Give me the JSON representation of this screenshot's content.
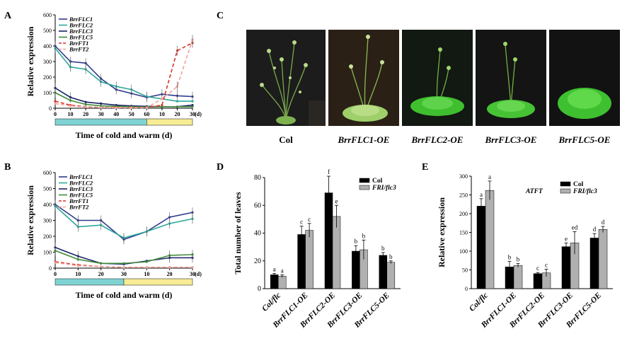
{
  "panel_letters": {
    "a": "A",
    "b": "B",
    "c": "C",
    "d": "D",
    "e": "E"
  },
  "line_panel_common": {
    "xlabel": "Time of cold and warm (d)",
    "ylabel": "Relative expression",
    "y_ticks": [
      "0",
      "100",
      "200",
      "300",
      "400",
      "500",
      "600"
    ],
    "unit_label": "(d)",
    "cold_bar_color": "#7fd3d3",
    "warm_bar_color": "#f8ec94"
  },
  "chart_data": [
    {
      "panel": "A",
      "type": "line",
      "xlabel": "Time of cold and warm (d)",
      "ylabel": "Relative expression",
      "ylim": [
        0,
        600
      ],
      "x_tick_labels": [
        "0",
        "10",
        "20",
        "30",
        "40",
        "50",
        "60",
        "10",
        "20",
        "30"
      ],
      "legend_placement": "top-left",
      "series": [
        {
          "name": "BrrFLC1",
          "color": "#2e3a8c",
          "dash": "solid",
          "values": [
            400,
            300,
            290,
            190,
            120,
            95,
            70,
            90,
            80,
            75
          ]
        },
        {
          "name": "BrrFLC2",
          "color": "#2fa89a",
          "dash": "solid",
          "values": [
            385,
            265,
            250,
            170,
            140,
            120,
            75,
            60,
            45,
            45
          ]
        },
        {
          "name": "BrrFLC3",
          "color": "#1a2366",
          "dash": "solid",
          "values": [
            130,
            70,
            40,
            30,
            20,
            15,
            12,
            10,
            10,
            20
          ]
        },
        {
          "name": "BrrFLC5",
          "color": "#3f8a3a",
          "dash": "solid",
          "values": [
            100,
            50,
            25,
            15,
            12,
            10,
            8,
            10,
            10,
            10
          ]
        },
        {
          "name": "BrrFT1",
          "color": "#d9332c",
          "dash": "dashed",
          "values": [
            45,
            20,
            10,
            5,
            5,
            5,
            5,
            20,
            370,
            420
          ]
        },
        {
          "name": "BrrFT2",
          "color": "#f0a39c",
          "dash": "dashed",
          "values": [
            30,
            15,
            8,
            5,
            3,
            3,
            3,
            60,
            140,
            440
          ]
        }
      ]
    },
    {
      "panel": "B",
      "type": "line",
      "xlabel": "Time of cold and warm (d)",
      "ylabel": "Relative expression",
      "ylim": [
        0,
        600
      ],
      "x_tick_labels": [
        "0",
        "10",
        "20",
        "30",
        "10",
        "20",
        "30"
      ],
      "legend_placement": "top-left",
      "series": [
        {
          "name": "BrrFLC1",
          "color": "#2e3a8c",
          "dash": "solid",
          "values": [
            400,
            300,
            300,
            180,
            230,
            320,
            350
          ]
        },
        {
          "name": "BrrFLC2",
          "color": "#2fa89a",
          "dash": "solid",
          "values": [
            390,
            260,
            270,
            190,
            230,
            280,
            310
          ]
        },
        {
          "name": "BrrFLC3",
          "color": "#1a2366",
          "dash": "solid",
          "values": [
            130,
            75,
            30,
            25,
            45,
            65,
            65
          ]
        },
        {
          "name": "BrrFLC5",
          "color": "#3f8a3a",
          "dash": "solid",
          "values": [
            110,
            55,
            30,
            30,
            40,
            80,
            85
          ]
        },
        {
          "name": "BrrFT1",
          "color": "#d9332c",
          "dash": "dashed",
          "values": [
            40,
            20,
            10,
            5,
            5,
            5,
            5
          ]
        },
        {
          "name": "BrrFT2",
          "color": "#f0a39c",
          "dash": "dashed",
          "values": [
            35,
            15,
            10,
            5,
            5,
            5,
            5
          ]
        }
      ]
    },
    {
      "panel": "D",
      "type": "bar",
      "ylabel": "Total number of leaves",
      "ylim": [
        0,
        80
      ],
      "y_ticks": [
        "0",
        "20",
        "40",
        "60",
        "80"
      ],
      "categories": [
        "Col/flc",
        "BrrFLC1-OE",
        "BrrFLC2-OE",
        "BrrFLC3-OE",
        "BrrFLC5-OE"
      ],
      "legend_placement": "top-right",
      "series": [
        {
          "name": "Col",
          "color": "#000000",
          "values": [
            10,
            39,
            69,
            27,
            24
          ],
          "errors": [
            1,
            6,
            12,
            4,
            2
          ],
          "letters": [
            "a",
            "c",
            "f",
            "b",
            "b"
          ]
        },
        {
          "name": "FRI/flc3",
          "color": "#b0b0b0",
          "values": [
            9,
            42,
            52,
            28,
            19
          ],
          "errors": [
            1,
            5,
            8,
            7,
            1
          ],
          "letters": [
            "a",
            "c",
            "e",
            "b",
            "b"
          ]
        }
      ]
    },
    {
      "panel": "E",
      "type": "bar",
      "ylabel": "Relative expression",
      "annotation": "ATFT",
      "ylim": [
        0,
        300
      ],
      "y_ticks": [
        "0",
        "50",
        "100",
        "150",
        "200",
        "250",
        "300"
      ],
      "categories": [
        "Col/flc",
        "BrrFLC1-OE",
        "BrrFLC2-OE",
        "BrrFLC3-OE",
        "BrrFLC5-OE"
      ],
      "legend_placement": "top-right",
      "series": [
        {
          "name": "Col",
          "color": "#000000",
          "values": [
            220,
            58,
            40,
            112,
            135
          ],
          "errors": [
            20,
            15,
            3,
            10,
            12
          ],
          "letters": [
            "a",
            "b",
            "c",
            "e",
            "d"
          ]
        },
        {
          "name": "FRI/flc3",
          "color": "#b0b0b0",
          "values": [
            262,
            62,
            42,
            122,
            158
          ],
          "errors": [
            25,
            5,
            10,
            30,
            8
          ],
          "letters": [
            "a",
            "b",
            "c",
            "ed",
            "d"
          ]
        }
      ]
    }
  ],
  "photos": {
    "labels": [
      "Col",
      "BrrFLC1-OE",
      "BrrFLC2-OE",
      "BrrFLC3-OE",
      "BrrFLC5-OE"
    ]
  }
}
